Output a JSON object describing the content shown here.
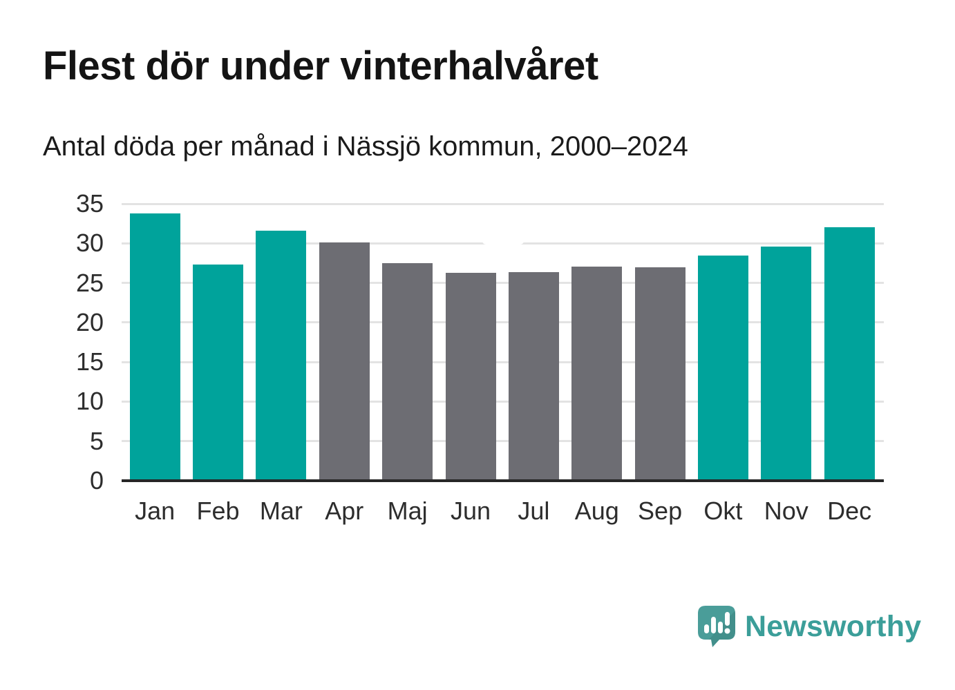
{
  "header": {
    "title": "Flest dör under vinterhalvåret",
    "subtitle": "Antal döda per månad i Nässjö kommun, 2000–2024"
  },
  "chart_data": {
    "type": "bar",
    "title": "Flest dör under vinterhalvåret",
    "subtitle": "Antal döda per månad i Nässjö kommun, 2000–2024",
    "categories": [
      "Jan",
      "Feb",
      "Mar",
      "Apr",
      "Maj",
      "Jun",
      "Jul",
      "Aug",
      "Sep",
      "Okt",
      "Nov",
      "Dec"
    ],
    "values": [
      33.8,
      27.3,
      31.6,
      30.1,
      27.5,
      26.3,
      26.4,
      27.1,
      27.0,
      28.5,
      29.6,
      32.0
    ],
    "bar_colors": [
      "#00a39b",
      "#00a39b",
      "#00a39b",
      "#6d6d73",
      "#6d6d73",
      "#6d6d73",
      "#6d6d73",
      "#6d6d73",
      "#6d6d73",
      "#00a39b",
      "#00a39b",
      "#00a39b"
    ],
    "palette": {
      "teal": "#00a39b",
      "gray": "#6d6d73"
    },
    "xlabel": "",
    "ylabel": "",
    "ylim": [
      0,
      35
    ],
    "yticks": [
      0,
      5,
      10,
      15,
      20,
      25,
      30,
      35
    ],
    "grid": true,
    "legend": false,
    "gridline_color": "#e3e3e3",
    "axis_color": "#262626"
  },
  "footer": {
    "logo_text": "Newsworthy",
    "logo_text_color": "#3b9e99",
    "logo_icon_color": "#4a9d99",
    "logo_icon_shade": "#428f8b"
  }
}
